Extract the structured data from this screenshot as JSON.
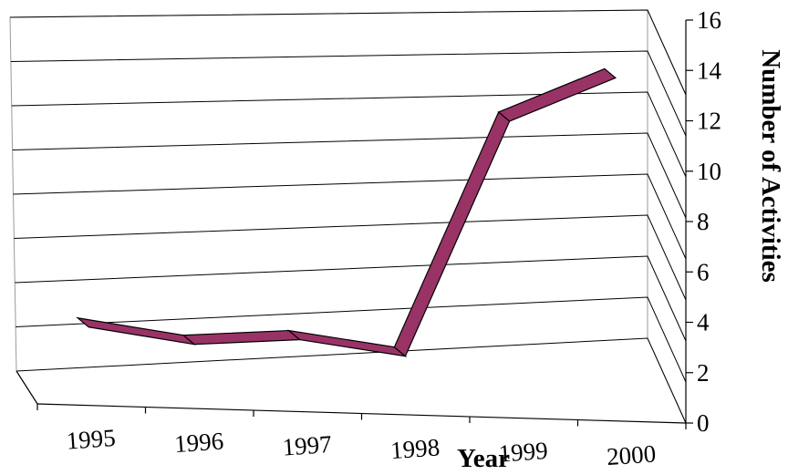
{
  "chart_data": {
    "type": "line",
    "style": "3d-ribbon",
    "categories": [
      "1995",
      "1996",
      "1997",
      "1998",
      "1999",
      "2000"
    ],
    "series": [
      {
        "values": [
          4,
          3,
          3,
          2,
          13,
          15
        ]
      }
    ],
    "xlabel": "Year",
    "ylabel": "Number of Activities",
    "ylim": [
      0,
      16
    ],
    "yticks": [
      "0",
      "2",
      "4",
      "6",
      "8",
      "10",
      "12",
      "14",
      "16"
    ],
    "grid": true,
    "legend": "none",
    "colors": {
      "ribbon": "#993366",
      "outline": "#000000",
      "grid": "#000000",
      "wall_edge": "#9a9a9a"
    }
  }
}
